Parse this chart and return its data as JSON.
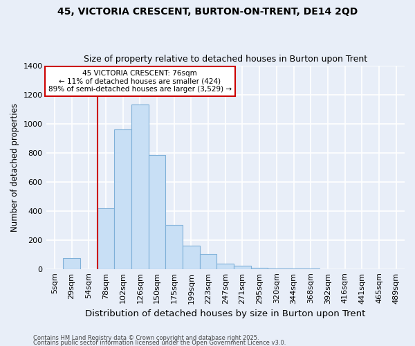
{
  "title": "45, VICTORIA CRESCENT, BURTON-ON-TRENT, DE14 2QD",
  "subtitle": "Size of property relative to detached houses in Burton upon Trent",
  "xlabel": "Distribution of detached houses by size in Burton upon Trent",
  "ylabel": "Number of detached properties",
  "footnote1": "Contains HM Land Registry data © Crown copyright and database right 2025.",
  "footnote2": "Contains public sector information licensed under the Open Government Licence v3.0.",
  "bar_labels": [
    "5sqm",
    "29sqm",
    "54sqm",
    "78sqm",
    "102sqm",
    "126sqm",
    "150sqm",
    "175sqm",
    "199sqm",
    "223sqm",
    "247sqm",
    "271sqm",
    "295sqm",
    "320sqm",
    "344sqm",
    "368sqm",
    "392sqm",
    "416sqm",
    "441sqm",
    "465sqm",
    "489sqm"
  ],
  "bar_values": [
    0,
    75,
    0,
    415,
    960,
    1130,
    785,
    305,
    160,
    105,
    35,
    20,
    8,
    2,
    1,
    1,
    0,
    0,
    0,
    0,
    0
  ],
  "bar_color": "#c8dff5",
  "bar_edgecolor": "#7fb0d8",
  "background_color": "#e8eef8",
  "grid_color": "#ffffff",
  "vline_x": 2.5,
  "vline_color": "#cc0000",
  "annotation_text": "45 VICTORIA CRESCENT: 76sqm\n← 11% of detached houses are smaller (424)\n89% of semi-detached houses are larger (3,529) →",
  "annotation_box_facecolor": "#ffffff",
  "annotation_box_edgecolor": "#cc0000",
  "ylim": [
    0,
    1400
  ],
  "yticks": [
    0,
    200,
    400,
    600,
    800,
    1000,
    1200,
    1400
  ]
}
